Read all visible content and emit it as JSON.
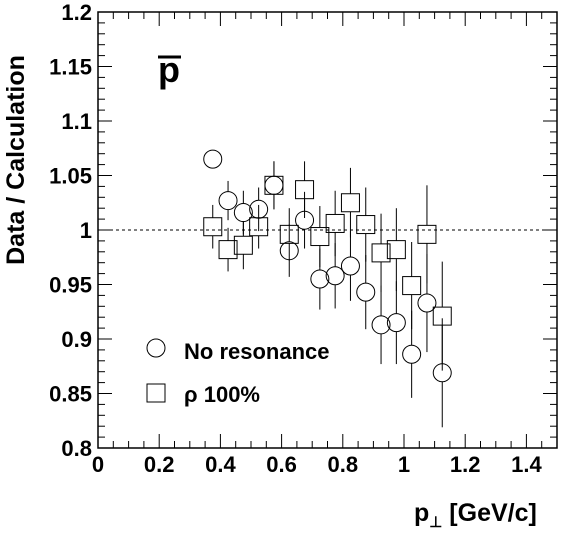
{
  "chart_data": {
    "type": "scatter",
    "particle_label": "p",
    "xlabel_main": "p",
    "xlabel_sub": "⊥",
    "xlabel_unit": " [GeV/c]",
    "ylabel": "Data / Calculation",
    "xlim": [
      0,
      1.5
    ],
    "ylim": [
      0.8,
      1.2
    ],
    "x_ticks": [
      0,
      0.2,
      0.4,
      0.6,
      0.8,
      1,
      1.2,
      1.4
    ],
    "x_tick_labels": [
      "0",
      "0.2",
      "0.4",
      "0.6",
      "0.8",
      "1",
      "1.2",
      "1.4"
    ],
    "y_ticks": [
      0.8,
      0.85,
      0.9,
      0.95,
      1,
      1.05,
      1.1,
      1.15,
      1.2
    ],
    "y_tick_labels": [
      "0.8",
      "0.85",
      "0.9",
      "0.95",
      "1",
      "1.05",
      "1.1",
      "1.15",
      "1.2"
    ],
    "reference_line": 1,
    "series": [
      {
        "name": "No resonance",
        "marker": "circle",
        "points": [
          {
            "x": 0.375,
            "y": 1.065,
            "err": 0
          },
          {
            "x": 0.425,
            "y": 1.027,
            "err": 0.018
          },
          {
            "x": 0.475,
            "y": 1.016,
            "err": 0.02
          },
          {
            "x": 0.525,
            "y": 1.019,
            "err": 0.02
          },
          {
            "x": 0.575,
            "y": 1.041,
            "err": 0.022
          },
          {
            "x": 0.625,
            "y": 0.981,
            "err": 0.024
          },
          {
            "x": 0.675,
            "y": 1.009,
            "err": 0.026
          },
          {
            "x": 0.725,
            "y": 0.955,
            "err": 0.028
          },
          {
            "x": 0.775,
            "y": 0.958,
            "err": 0.03
          },
          {
            "x": 0.825,
            "y": 0.967,
            "err": 0.032
          },
          {
            "x": 0.875,
            "y": 0.943,
            "err": 0.034
          },
          {
            "x": 0.925,
            "y": 0.913,
            "err": 0.036
          },
          {
            "x": 0.975,
            "y": 0.915,
            "err": 0.038
          },
          {
            "x": 1.025,
            "y": 0.886,
            "err": 0.04
          },
          {
            "x": 1.075,
            "y": 0.933,
            "err": 0.045
          },
          {
            "x": 1.125,
            "y": 0.869,
            "err": 0.05
          }
        ]
      },
      {
        "name": "ρ 100%",
        "marker": "square",
        "points": [
          {
            "x": 0.375,
            "y": 1.003,
            "err": 0.02
          },
          {
            "x": 0.425,
            "y": 0.982,
            "err": 0.02
          },
          {
            "x": 0.475,
            "y": 0.986,
            "err": 0.022
          },
          {
            "x": 0.525,
            "y": 1.003,
            "err": 0.02
          },
          {
            "x": 0.575,
            "y": 1.041,
            "err": 0.022
          },
          {
            "x": 0.625,
            "y": 0.996,
            "err": 0.024
          },
          {
            "x": 0.675,
            "y": 1.037,
            "err": 0.026
          },
          {
            "x": 0.725,
            "y": 0.994,
            "err": 0.028
          },
          {
            "x": 0.775,
            "y": 1.006,
            "err": 0.03
          },
          {
            "x": 0.825,
            "y": 1.025,
            "err": 0.032
          },
          {
            "x": 0.875,
            "y": 1.005,
            "err": 0.034
          },
          {
            "x": 0.925,
            "y": 0.979,
            "err": 0.036
          },
          {
            "x": 0.975,
            "y": 0.982,
            "err": 0.038
          },
          {
            "x": 1.025,
            "y": 0.949,
            "err": 0.04
          },
          {
            "x": 1.075,
            "y": 0.996,
            "err": 0.045
          },
          {
            "x": 1.125,
            "y": 0.921,
            "err": 0.05
          }
        ]
      }
    ],
    "legend_position": "bottom-left",
    "grid": false
  }
}
